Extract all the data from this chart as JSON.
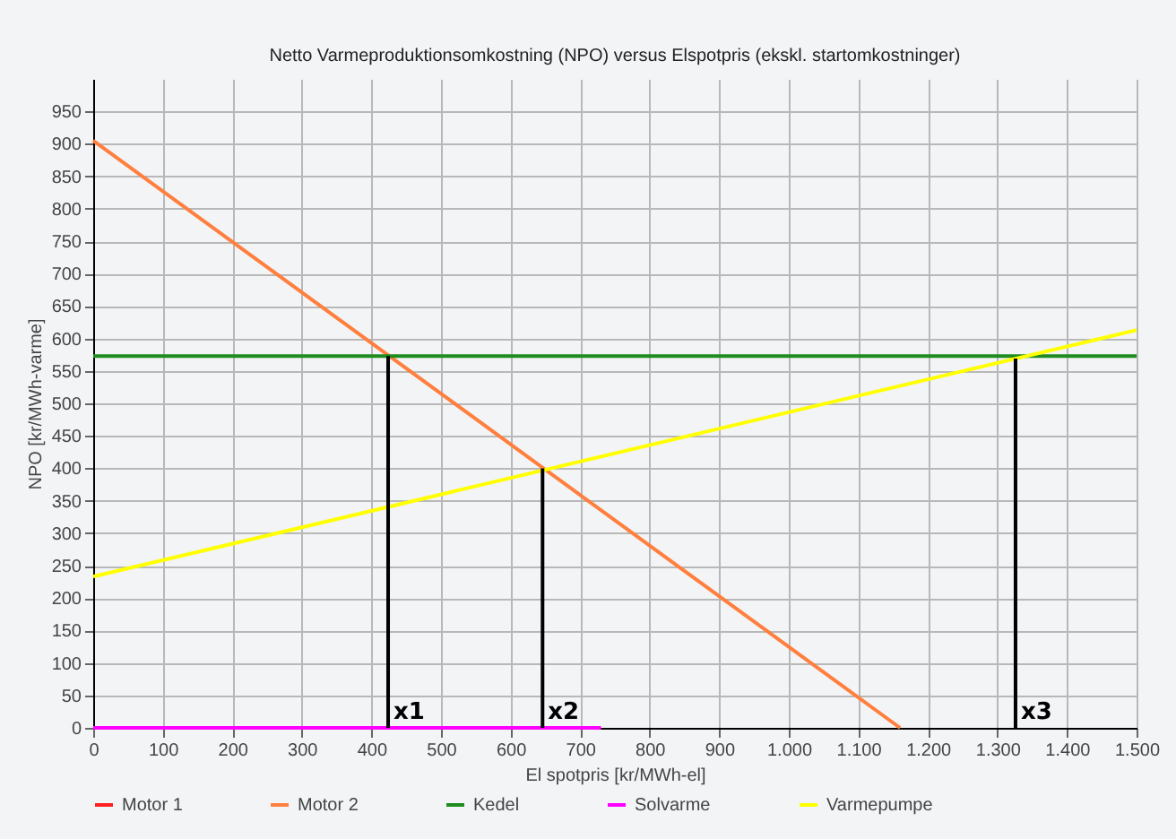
{
  "chart_data": {
    "type": "line",
    "title": "Netto Varmeproduktionsomkostning (NPO) versus Elspotpris (ekskl. startomkostninger)",
    "xlabel": "El spotpris [kr/MWh-el]",
    "ylabel": "NPO [kr/MWh-varme]",
    "xlim": [
      0,
      1500
    ],
    "xticks": [
      0,
      100,
      200,
      300,
      400,
      500,
      600,
      700,
      800,
      900,
      {
        "value": 1000,
        "label": "1.000"
      },
      {
        "value": 1100,
        "label": "1.100"
      },
      {
        "value": 1200,
        "label": "1.200"
      },
      {
        "value": 1300,
        "label": "1.300"
      },
      {
        "value": 1400,
        "label": "1.400"
      },
      {
        "value": 1500,
        "label": "1.500"
      }
    ],
    "ylim": [
      0,
      1000
    ],
    "yticks": [
      0,
      50,
      100,
      150,
      200,
      250,
      300,
      350,
      400,
      450,
      500,
      550,
      600,
      650,
      700,
      750,
      800,
      850,
      900,
      950
    ],
    "grid": true,
    "legend": "bottom",
    "series": [
      {
        "name": "Motor 1",
        "color": "#ff2020"
      },
      {
        "name": "Motor 2",
        "color": "#ff7f3f",
        "x": [
          0,
          1160
        ],
        "values": [
          905,
          0
        ]
      },
      {
        "name": "Kedel",
        "color": "#1f8c1f",
        "x": [
          0,
          1500
        ],
        "values": [
          573,
          573
        ]
      },
      {
        "name": "Solvarme",
        "color": "#ff00ff",
        "x": [
          0,
          730
        ],
        "values": [
          0,
          0
        ]
      },
      {
        "name": "Varmepumpe",
        "color": "#ffff00",
        "x": [
          0,
          1500
        ],
        "values": [
          233,
          613
        ]
      },
      {
        "color": "#000000",
        "x": [
          424,
          424
        ],
        "values": [
          0,
          573
        ]
      },
      {
        "color": "#000000",
        "x": [
          646,
          646
        ],
        "values": [
          0,
          400
        ]
      },
      {
        "color": "#000000",
        "x": [
          1326,
          1326
        ],
        "values": [
          0,
          569
        ]
      }
    ],
    "annotations": [
      {
        "text": "x1",
        "x": 424,
        "y": 0
      },
      {
        "text": "x2",
        "x": 646,
        "y": 0
      },
      {
        "text": "x3",
        "x": 1326,
        "y": 0
      }
    ]
  }
}
